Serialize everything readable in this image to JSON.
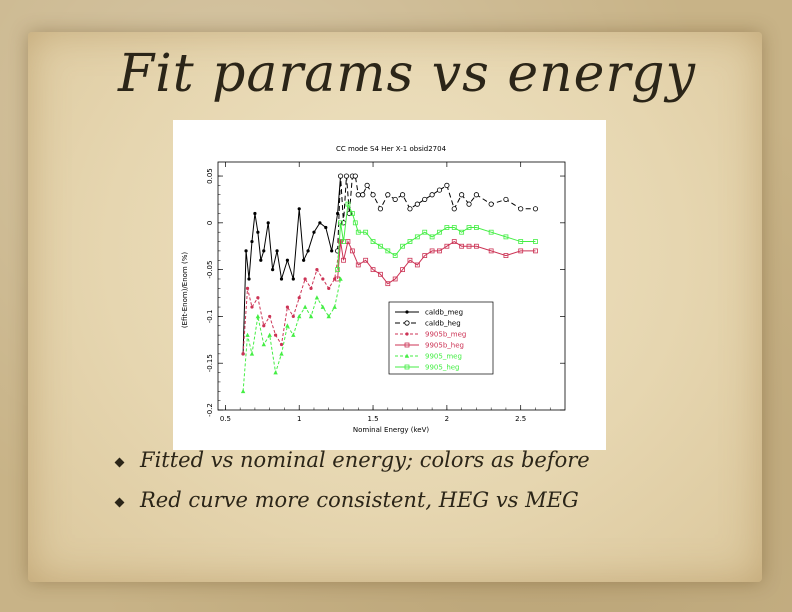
{
  "slide": {
    "title": "Fit params vs energy",
    "bullets": [
      "Fitted vs nominal energy; colors as before",
      "Red curve more consistent, HEG vs MEG"
    ]
  },
  "chart_data": {
    "type": "line",
    "title": "CC mode S4 Her X-1 obsid2704",
    "xlabel": "Nominal Energy (keV)",
    "ylabel": "(Efit-Enom)/Enom (%)",
    "xlim": [
      0.45,
      2.8
    ],
    "ylim": [
      -0.2,
      0.065
    ],
    "x_ticks": [
      "0.5",
      "1",
      "1.5",
      "2",
      "2.5"
    ],
    "x_tick_values": [
      0.5,
      1,
      1.5,
      2,
      2.5
    ],
    "y_ticks": [
      "-0.2",
      "-0.15",
      "-0.1",
      "-0.05",
      "0",
      "0.05"
    ],
    "y_tick_values": [
      -0.2,
      -0.15,
      -0.1,
      -0.05,
      0,
      0.05
    ],
    "legend_position": "inside-lower-right",
    "series": [
      {
        "name": "caldb_meg",
        "color": "#000000",
        "dash": "none",
        "marker": "dot",
        "points": [
          [
            0.62,
            -0.14
          ],
          [
            0.64,
            -0.03
          ],
          [
            0.66,
            -0.06
          ],
          [
            0.68,
            -0.02
          ],
          [
            0.7,
            0.01
          ],
          [
            0.72,
            -0.01
          ],
          [
            0.74,
            -0.04
          ],
          [
            0.76,
            -0.03
          ],
          [
            0.79,
            0.0
          ],
          [
            0.82,
            -0.05
          ],
          [
            0.85,
            -0.03
          ],
          [
            0.88,
            -0.06
          ],
          [
            0.92,
            -0.04
          ],
          [
            0.96,
            -0.06
          ],
          [
            1.0,
            0.015
          ],
          [
            1.03,
            -0.04
          ],
          [
            1.06,
            -0.03
          ],
          [
            1.1,
            -0.01
          ],
          [
            1.14,
            0.0
          ],
          [
            1.18,
            -0.005
          ],
          [
            1.22,
            -0.03
          ],
          [
            1.26,
            0.01
          ],
          [
            1.28,
            0.05
          ]
        ]
      },
      {
        "name": "caldb_heg",
        "color": "#000000",
        "dash": "5,3",
        "marker": "circle",
        "points": [
          [
            1.26,
            -0.03
          ],
          [
            1.28,
            0.05
          ],
          [
            1.3,
            0.0
          ],
          [
            1.32,
            0.05
          ],
          [
            1.34,
            0.01
          ],
          [
            1.36,
            0.05
          ],
          [
            1.38,
            0.05
          ],
          [
            1.4,
            0.03
          ],
          [
            1.43,
            0.03
          ],
          [
            1.46,
            0.04
          ],
          [
            1.5,
            0.03
          ],
          [
            1.55,
            0.015
          ],
          [
            1.6,
            0.03
          ],
          [
            1.65,
            0.025
          ],
          [
            1.7,
            0.03
          ],
          [
            1.75,
            0.015
          ],
          [
            1.8,
            0.02
          ],
          [
            1.85,
            0.025
          ],
          [
            1.9,
            0.03
          ],
          [
            1.95,
            0.035
          ],
          [
            2.0,
            0.04
          ],
          [
            2.05,
            0.015
          ],
          [
            2.1,
            0.03
          ],
          [
            2.15,
            0.02
          ],
          [
            2.2,
            0.03
          ],
          [
            2.3,
            0.02
          ],
          [
            2.4,
            0.025
          ],
          [
            2.5,
            0.015
          ],
          [
            2.6,
            0.015
          ]
        ]
      },
      {
        "name": "9905b_meg",
        "color": "#cc3355",
        "dash": "3,2",
        "marker": "dot",
        "points": [
          [
            0.62,
            -0.14
          ],
          [
            0.65,
            -0.07
          ],
          [
            0.68,
            -0.09
          ],
          [
            0.72,
            -0.08
          ],
          [
            0.76,
            -0.11
          ],
          [
            0.8,
            -0.1
          ],
          [
            0.84,
            -0.12
          ],
          [
            0.88,
            -0.13
          ],
          [
            0.92,
            -0.09
          ],
          [
            0.96,
            -0.1
          ],
          [
            1.0,
            -0.08
          ],
          [
            1.04,
            -0.06
          ],
          [
            1.08,
            -0.07
          ],
          [
            1.12,
            -0.05
          ],
          [
            1.16,
            -0.06
          ],
          [
            1.2,
            -0.07
          ],
          [
            1.24,
            -0.06
          ],
          [
            1.28,
            -0.02
          ]
        ]
      },
      {
        "name": "9905b_heg",
        "color": "#cc3355",
        "dash": "none",
        "marker": "square",
        "points": [
          [
            1.26,
            -0.06
          ],
          [
            1.28,
            -0.02
          ],
          [
            1.3,
            -0.04
          ],
          [
            1.33,
            -0.02
          ],
          [
            1.36,
            -0.03
          ],
          [
            1.4,
            -0.045
          ],
          [
            1.45,
            -0.04
          ],
          [
            1.5,
            -0.05
          ],
          [
            1.55,
            -0.055
          ],
          [
            1.6,
            -0.065
          ],
          [
            1.65,
            -0.06
          ],
          [
            1.7,
            -0.05
          ],
          [
            1.75,
            -0.04
          ],
          [
            1.8,
            -0.045
          ],
          [
            1.85,
            -0.035
          ],
          [
            1.9,
            -0.03
          ],
          [
            1.95,
            -0.03
          ],
          [
            2.0,
            -0.025
          ],
          [
            2.05,
            -0.02
          ],
          [
            2.1,
            -0.025
          ],
          [
            2.15,
            -0.025
          ],
          [
            2.2,
            -0.025
          ],
          [
            2.3,
            -0.03
          ],
          [
            2.4,
            -0.035
          ],
          [
            2.5,
            -0.03
          ],
          [
            2.6,
            -0.03
          ]
        ]
      },
      {
        "name": "9905_meg",
        "color": "#44ee44",
        "dash": "3,2",
        "marker": "triangle",
        "points": [
          [
            0.62,
            -0.18
          ],
          [
            0.65,
            -0.12
          ],
          [
            0.68,
            -0.14
          ],
          [
            0.72,
            -0.1
          ],
          [
            0.76,
            -0.13
          ],
          [
            0.8,
            -0.12
          ],
          [
            0.84,
            -0.16
          ],
          [
            0.88,
            -0.14
          ],
          [
            0.92,
            -0.11
          ],
          [
            0.96,
            -0.12
          ],
          [
            1.0,
            -0.1
          ],
          [
            1.04,
            -0.09
          ],
          [
            1.08,
            -0.1
          ],
          [
            1.12,
            -0.08
          ],
          [
            1.16,
            -0.09
          ],
          [
            1.2,
            -0.1
          ],
          [
            1.24,
            -0.09
          ],
          [
            1.28,
            -0.06
          ]
        ]
      },
      {
        "name": "9905_heg",
        "color": "#44ee44",
        "dash": "none",
        "marker": "square",
        "points": [
          [
            1.26,
            -0.05
          ],
          [
            1.28,
            0.0
          ],
          [
            1.3,
            -0.02
          ],
          [
            1.33,
            0.02
          ],
          [
            1.36,
            0.01
          ],
          [
            1.38,
            0.0
          ],
          [
            1.4,
            -0.01
          ],
          [
            1.45,
            -0.01
          ],
          [
            1.5,
            -0.02
          ],
          [
            1.55,
            -0.025
          ],
          [
            1.6,
            -0.03
          ],
          [
            1.65,
            -0.035
          ],
          [
            1.7,
            -0.025
          ],
          [
            1.75,
            -0.02
          ],
          [
            1.8,
            -0.015
          ],
          [
            1.85,
            -0.01
          ],
          [
            1.9,
            -0.015
          ],
          [
            1.95,
            -0.01
          ],
          [
            2.0,
            -0.005
          ],
          [
            2.05,
            -0.005
          ],
          [
            2.1,
            -0.01
          ],
          [
            2.15,
            -0.005
          ],
          [
            2.2,
            -0.005
          ],
          [
            2.3,
            -0.01
          ],
          [
            2.4,
            -0.015
          ],
          [
            2.5,
            -0.02
          ],
          [
            2.6,
            -0.02
          ]
        ]
      }
    ]
  }
}
